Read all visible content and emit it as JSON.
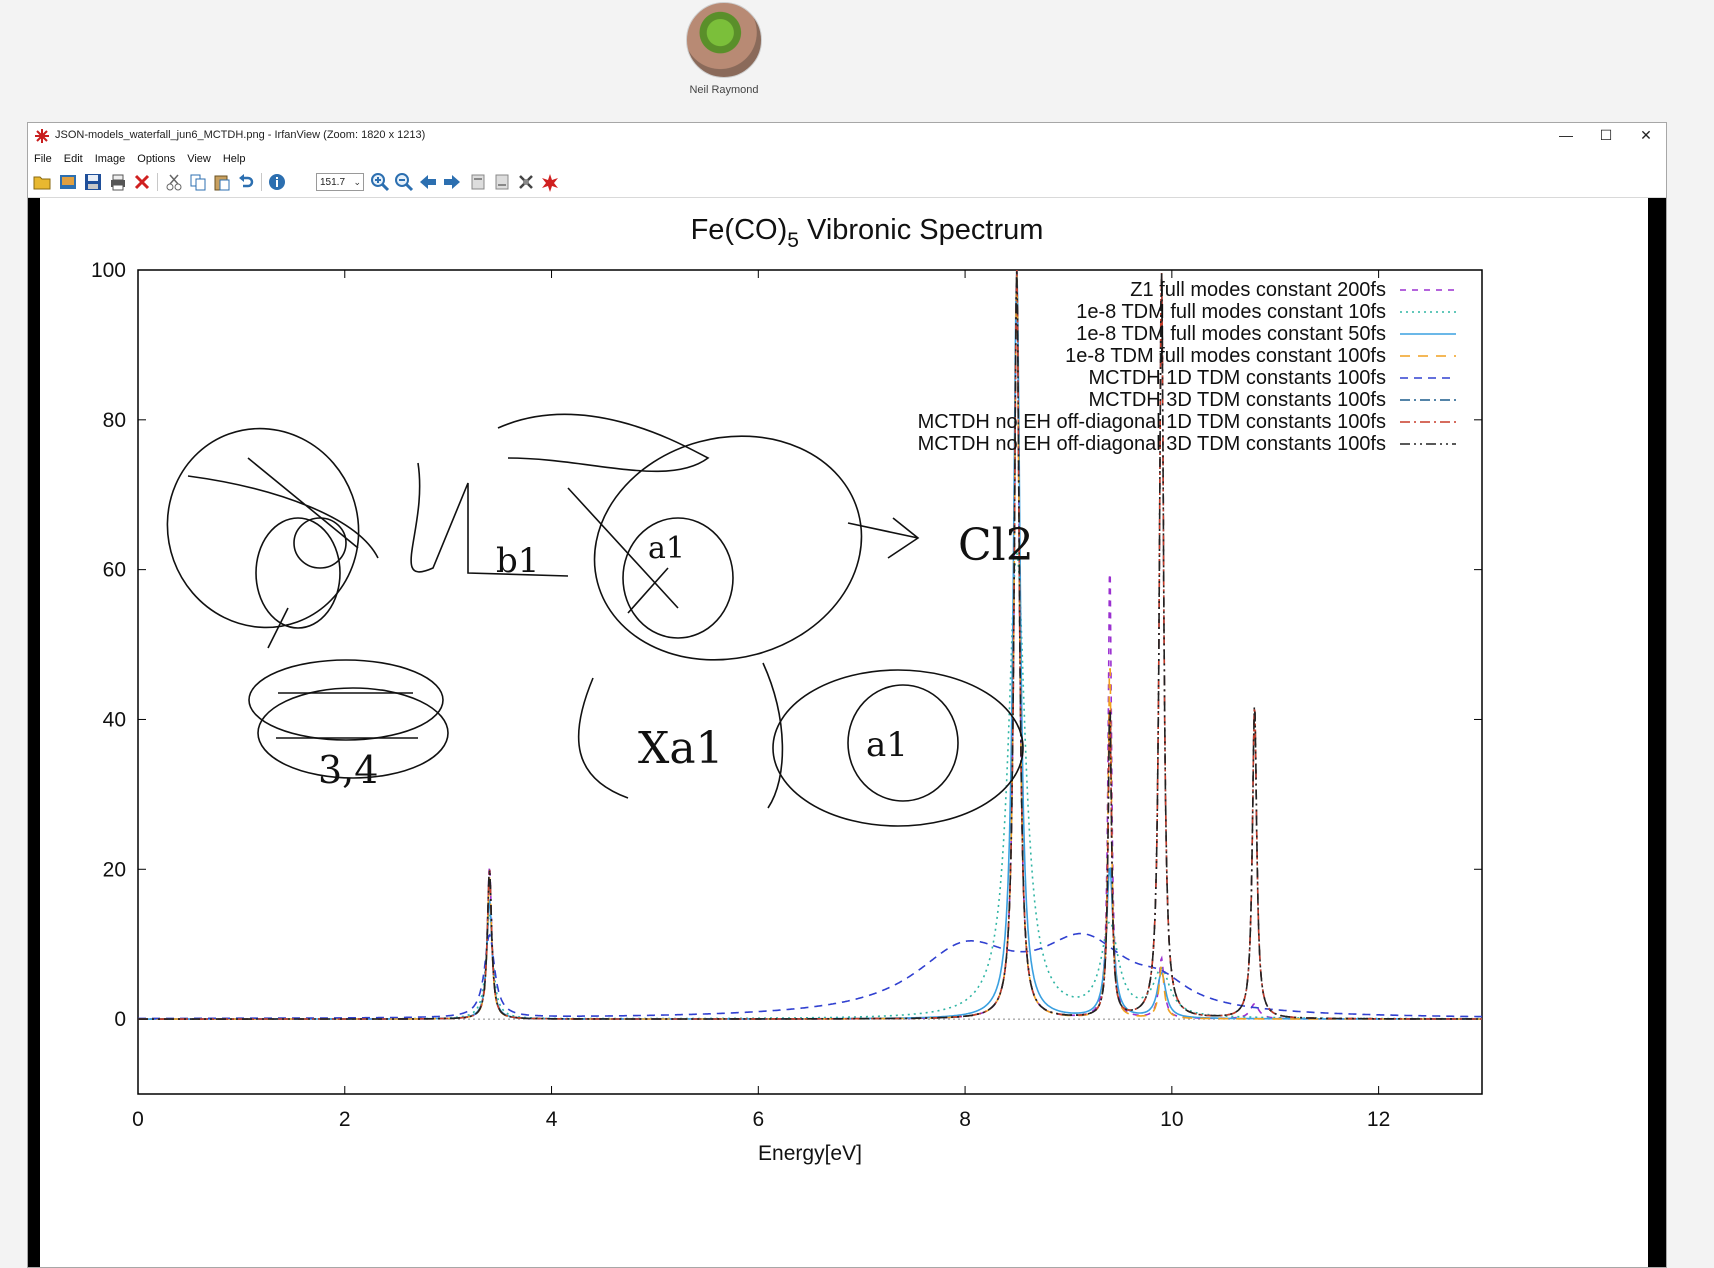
{
  "presenter": {
    "name": "Neil Raymond"
  },
  "window": {
    "title": "JSON-models_waterfall_jun6_MCTDH.png - IrfanView (Zoom: 1820 x 1213)",
    "controls": {
      "minimize": "—",
      "maximize": "☐",
      "close": "✕"
    },
    "menu": [
      "File",
      "Edit",
      "Image",
      "Options",
      "View",
      "Help"
    ],
    "zoom_value": "151.7",
    "toolbar_icons": [
      "open-folder-icon",
      "thumbnails-icon",
      "save-icon",
      "print-icon",
      "delete-icon",
      "cut-icon",
      "copy-icon",
      "paste-icon",
      "undo-icon",
      "info-icon",
      "zoom-in-icon",
      "zoom-out-icon",
      "previous-icon",
      "next-icon",
      "first-page-icon",
      "last-page-icon",
      "settings-icon",
      "about-icon"
    ]
  },
  "chart_data": {
    "type": "line",
    "title": "Fe(CO)",
    "title_subscript": "5",
    "title_suffix": " Vibronic Spectrum",
    "xlabel": "Energy[eV]",
    "ylabel": "",
    "xlim": [
      0,
      13
    ],
    "ylim": [
      -10,
      100
    ],
    "x_ticks": [
      "0",
      "2",
      "4",
      "6",
      "8",
      "10",
      "12"
    ],
    "y_ticks": [
      "0",
      "20",
      "40",
      "60",
      "80",
      "100"
    ],
    "legend_position": "top-right",
    "peaks_eV": [
      3.4,
      8.5,
      9.4,
      9.9,
      10.8
    ],
    "series": [
      {
        "name": "Z1 full modes constant 200fs",
        "color": "#9b30d0",
        "dash": "6,6",
        "peaks": [
          [
            3.4,
            20.5,
            0.025
          ],
          [
            8.5,
            100,
            0.03
          ],
          [
            9.4,
            61,
            0.02
          ],
          [
            9.9,
            8,
            0.03
          ],
          [
            10.8,
            2,
            0.05
          ]
        ]
      },
      {
        "name": "1e-8 TDM full modes constant 10fs",
        "color": "#2fb5a4",
        "dash": "2,4",
        "peaks": [
          [
            3.4,
            14,
            0.04
          ],
          [
            8.5,
            62,
            0.1
          ],
          [
            9.4,
            12,
            0.1
          ],
          [
            9.9,
            6,
            0.1
          ]
        ]
      },
      {
        "name": "1e-8 TDM full modes constant 50fs",
        "color": "#3aa0e0",
        "dash": "",
        "peaks": [
          [
            3.4,
            16,
            0.03
          ],
          [
            8.5,
            100,
            0.04
          ],
          [
            9.4,
            20,
            0.04
          ],
          [
            9.9,
            6,
            0.05
          ]
        ]
      },
      {
        "name": "1e-8 TDM full modes constant 100fs",
        "color": "#f0a020",
        "dash": "10,8",
        "peaks": [
          [
            3.4,
            19,
            0.025
          ],
          [
            8.5,
            100,
            0.03
          ],
          [
            9.4,
            48,
            0.02
          ],
          [
            9.9,
            7,
            0.03
          ]
        ]
      },
      {
        "name": "MCTDH 1D TDM constants 100fs",
        "color": "#3040d0",
        "dash": "8,6",
        "peaks": [
          [
            3.4,
            11,
            0.06
          ],
          [
            8.0,
            8.6,
            0.6
          ],
          [
            9.15,
            9.2,
            0.55
          ],
          [
            9.9,
            2.5,
            0.3
          ]
        ]
      },
      {
        "name": "MCTDH 3D TDM constants 100fs",
        "color": "#1b5c8c",
        "dash": "10,4,2,4",
        "peaks": [
          [
            3.4,
            20,
            0.025
          ],
          [
            8.5,
            100,
            0.03
          ],
          [
            9.4,
            42,
            0.02
          ],
          [
            9.9,
            100,
            0.025
          ],
          [
            10.8,
            42,
            0.025
          ]
        ]
      },
      {
        "name": "MCTDH no EH off-diagonal 1D TDM constants 100fs",
        "color": "#c83c28",
        "dash": "10,4,2,4",
        "peaks": [
          [
            3.4,
            20,
            0.025
          ],
          [
            8.5,
            100,
            0.03
          ],
          [
            9.4,
            42,
            0.02
          ],
          [
            9.9,
            100,
            0.025
          ],
          [
            10.8,
            42,
            0.025
          ]
        ]
      },
      {
        "name": "MCTDH no EH off-diagonal 3D TDM constants 100fs",
        "color": "#222222",
        "dash": "10,4,2,4,2,4",
        "peaks": [
          [
            3.4,
            20,
            0.025
          ],
          [
            8.5,
            100,
            0.03
          ],
          [
            9.4,
            42,
            0.02
          ],
          [
            9.9,
            100,
            0.025
          ],
          [
            10.8,
            42,
            0.025
          ]
        ]
      }
    ]
  },
  "annotations": {
    "handwriting": [
      "b1",
      "a1",
      "Cl2",
      "Xa1",
      "a1",
      "3,4"
    ]
  }
}
